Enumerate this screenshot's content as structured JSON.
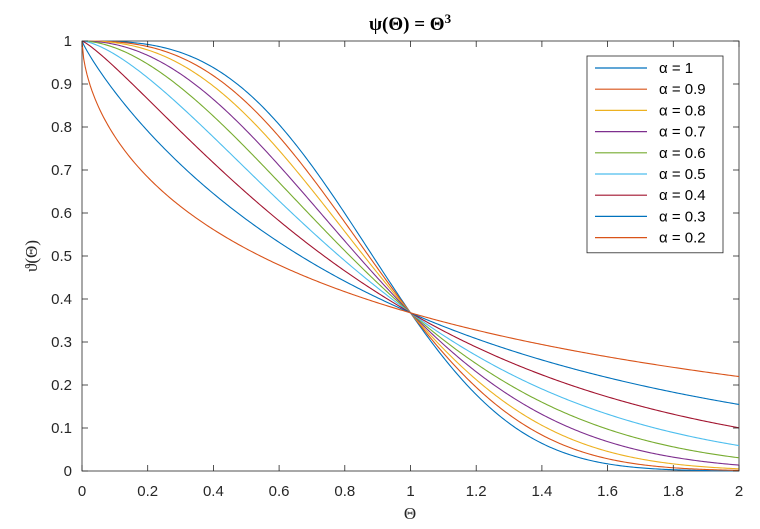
{
  "chart_data": {
    "type": "line",
    "title": "ψ(Θ) = Θ",
    "title_exponent": "3",
    "xlabel": "Θ",
    "ylabel": "ϑ(Θ)",
    "xlim": [
      0,
      2
    ],
    "ylim": [
      0,
      1
    ],
    "xticks": [
      "0",
      "0.2",
      "0.4",
      "0.6",
      "0.8",
      "1",
      "1.2",
      "1.4",
      "1.6",
      "1.8",
      "2"
    ],
    "yticks": [
      "0",
      "0.1",
      "0.2",
      "0.3",
      "0.4",
      "0.5",
      "0.6",
      "0.7",
      "0.8",
      "0.9",
      "1"
    ],
    "function": "ϑ(Θ) = exp(-Θ^(3α))",
    "legend_position": "top-right",
    "series": [
      {
        "name": "α = 1",
        "alpha": 1.0,
        "color": "#0072BD"
      },
      {
        "name": "α = 0.9",
        "alpha": 0.9,
        "color": "#D95319"
      },
      {
        "name": "α = 0.8",
        "alpha": 0.8,
        "color": "#EDB120"
      },
      {
        "name": "α = 0.7",
        "alpha": 0.7,
        "color": "#7E2F8E"
      },
      {
        "name": "α = 0.6",
        "alpha": 0.6,
        "color": "#77AC30"
      },
      {
        "name": "α = 0.5",
        "alpha": 0.5,
        "color": "#4DBEEE"
      },
      {
        "name": "α = 0.4",
        "alpha": 0.4,
        "color": "#A2142F"
      },
      {
        "name": "α = 0.3",
        "alpha": 0.3,
        "color": "#0072BD"
      },
      {
        "name": "α = 0.2",
        "alpha": 0.2,
        "color": "#D95319"
      }
    ]
  }
}
